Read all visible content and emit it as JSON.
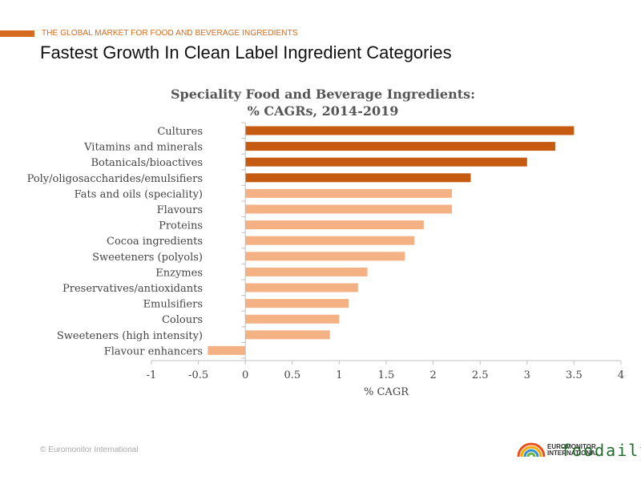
{
  "header": {
    "section_label": "THE GLOBAL MARKET FOR FOOD AND BEVERAGE INGREDIENTS",
    "title": "Fastest Growth In Clean Label Ingredient Categories"
  },
  "footer": {
    "copyright": "© Euromonitor International",
    "logo_line1": "EUROMONITOR",
    "logo_line2": "INTERNATIONAL",
    "watermark": "foodaily"
  },
  "colors": {
    "accent": "#d66a1f",
    "bar_dark": "#c55a11",
    "bar_light": "#f4b183"
  },
  "chart_data": {
    "type": "bar",
    "orientation": "horizontal",
    "title_line1": "Speciality Food and Beverage Ingredients:",
    "title_line2": "% CAGRs, 2014-2019",
    "xlabel": "% CAGR",
    "ylabel": "",
    "xlim": [
      -1,
      4
    ],
    "xticks": [
      -1,
      -0.5,
      0,
      0.5,
      1,
      1.5,
      2,
      2.5,
      3,
      3.5,
      4
    ],
    "xtick_labels": [
      "-1",
      "-0.5",
      "0",
      "0.5",
      "1",
      "1.5",
      "2",
      "2.5",
      "3",
      "3.5",
      "4"
    ],
    "categories": [
      "Cultures",
      "Vitamins and minerals",
      "Botanicals/bioactives",
      "Poly/oligosaccharides/emulsifiers",
      "Fats and oils (speciality)",
      "Flavours",
      "Proteins",
      "Cocoa ingredients",
      "Sweeteners (polyols)",
      "Enzymes",
      "Preservatives/antioxidants",
      "Emulsifiers",
      "Colours",
      "Sweeteners (high intensity)",
      "Flavour enhancers"
    ],
    "values": [
      3.5,
      3.3,
      3.0,
      2.4,
      2.2,
      2.2,
      1.9,
      1.8,
      1.7,
      1.3,
      1.2,
      1.1,
      1.0,
      0.9,
      -0.4
    ],
    "highlight": [
      true,
      true,
      true,
      true,
      false,
      false,
      false,
      false,
      false,
      false,
      false,
      false,
      false,
      false,
      false
    ],
    "grid": false
  }
}
